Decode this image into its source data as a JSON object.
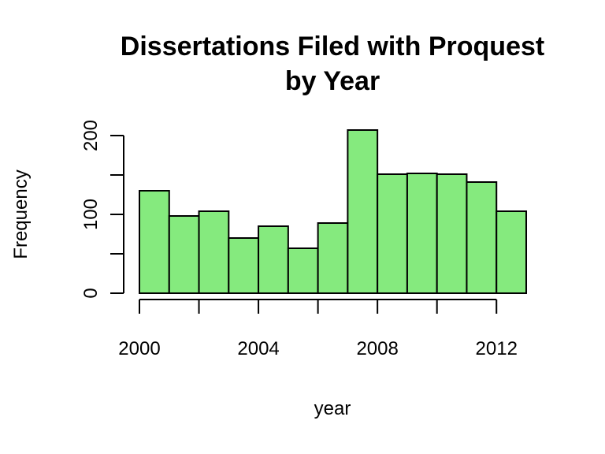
{
  "chart_data": {
    "type": "bar",
    "title": [
      "Dissertations Filed with Proquest",
      "by Year"
    ],
    "xlabel": "year",
    "ylabel": "Frequency",
    "bin_edges": [
      2000,
      2001,
      2002,
      2003,
      2004,
      2005,
      2006,
      2007,
      2008,
      2009,
      2010,
      2011,
      2012,
      2013
    ],
    "values": [
      130,
      98,
      104,
      70,
      85,
      57,
      89,
      207,
      151,
      152,
      151,
      141,
      104
    ],
    "xlim": [
      2000,
      2013
    ],
    "ylim": [
      0,
      200
    ],
    "x_ticks": [
      2000,
      2002,
      2004,
      2006,
      2008,
      2010,
      2012
    ],
    "x_tick_labels": [
      "2000",
      "",
      "2004",
      "",
      "2008",
      "",
      "2012"
    ],
    "y_ticks": [
      0,
      50,
      100,
      150,
      200
    ],
    "y_tick_labels": [
      "0",
      "",
      "100",
      "",
      "200"
    ],
    "grid": false,
    "bar_color": "#85ea7e",
    "bar_stroke": "#000000"
  }
}
